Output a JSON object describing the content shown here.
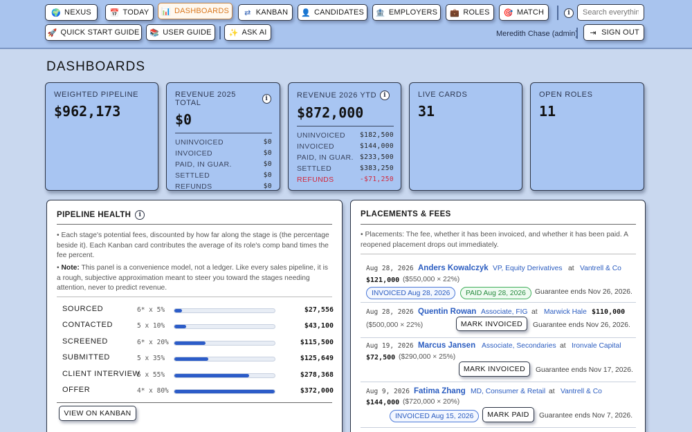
{
  "nav": {
    "row1": [
      {
        "id": "nexus",
        "label": "NEXUS",
        "icon": "globe-icon",
        "glyph": "🌍"
      },
      {
        "id": "today",
        "label": "TODAY",
        "icon": "calendar-icon",
        "glyph": "📅"
      },
      {
        "id": "dashboards",
        "label": "DASHBOARDS",
        "icon": "bar-chart-icon",
        "glyph": "📊",
        "active": true
      },
      {
        "id": "kanban",
        "label": "KANBAN",
        "icon": "arrows-icon",
        "glyph": "⇄"
      },
      {
        "id": "candidates",
        "label": "CANDIDATES",
        "icon": "person-icon",
        "glyph": "👤"
      },
      {
        "id": "employers",
        "label": "EMPLOYERS",
        "icon": "bank-icon",
        "glyph": "🏦"
      },
      {
        "id": "roles",
        "label": "ROLES",
        "icon": "briefcase-icon",
        "glyph": "💼"
      },
      {
        "id": "match",
        "label": "MATCH",
        "icon": "target-icon",
        "glyph": "🎯"
      }
    ],
    "row2": [
      {
        "id": "quick-start",
        "label": "QUICK START GUIDE",
        "icon": "rocket-icon",
        "glyph": "🚀"
      },
      {
        "id": "user-guide",
        "label": "USER GUIDE",
        "icon": "books-icon",
        "glyph": "📚"
      },
      {
        "id": "ask-ai",
        "label": "ASK AI",
        "icon": "sparkle-icon",
        "glyph": "✨"
      }
    ],
    "search_placeholder": "Search everything",
    "user": "Meredith Chase (admin)",
    "sign_out": "SIGN OUT"
  },
  "page_title": "DASHBOARDS",
  "cards": {
    "weighted": {
      "label": "WEIGHTED PIPELINE",
      "value": "$962,173"
    },
    "rev2025": {
      "label": "REVENUE 2025 TOTAL",
      "value": "$0",
      "rows": [
        {
          "label": "UNINVOICED",
          "amount": "$0"
        },
        {
          "label": "INVOICED",
          "amount": "$0"
        },
        {
          "label": "PAID, IN GUAR.",
          "amount": "$0"
        },
        {
          "label": "SETTLED",
          "amount": "$0"
        },
        {
          "label": "REFUNDS",
          "amount": "$0"
        }
      ]
    },
    "rev2026": {
      "label": "REVENUE 2026 YTD",
      "value": "$872,000",
      "rows": [
        {
          "label": "UNINVOICED",
          "amount": "$182,500"
        },
        {
          "label": "INVOICED",
          "amount": "$144,000"
        },
        {
          "label": "PAID, IN GUAR.",
          "amount": "$233,500"
        },
        {
          "label": "SETTLED",
          "amount": "$383,250"
        },
        {
          "label": "REFUNDS",
          "amount": "-$71,250"
        }
      ]
    },
    "live": {
      "label": "LIVE CARDS",
      "value": "31"
    },
    "open": {
      "label": "OPEN ROLES",
      "value": "11"
    }
  },
  "pipeline": {
    "title": "PIPELINE HEALTH",
    "para1": "• Each stage's potential fees, discounted by how far along the stage is (the percentage beside it). Each Kanban card contributes the average of its role's comp band times the fee percent.",
    "note_label": "Note:",
    "note_text": "This panel is a convenience model, not a ledger. Like every sales pipeline, it is a rough, subjective approximation meant to steer you toward the stages needing attention, never to predict revenue.",
    "note_bullet": "• ",
    "stages": [
      {
        "name": "SOURCED",
        "formula": "6* x 5%",
        "fraction": 0.074,
        "amount": "$27,556"
      },
      {
        "name": "CONTACTED",
        "formula": "5 x 10%",
        "fraction": 0.116,
        "amount": "$43,100"
      },
      {
        "name": "SCREENED",
        "formula": "6* x 20%",
        "fraction": 0.31,
        "amount": "$115,500"
      },
      {
        "name": "SUBMITTED",
        "formula": "5 x 35%",
        "fraction": 0.337,
        "amount": "$125,649"
      },
      {
        "name": "CLIENT INTERVIEW",
        "formula": "5 x 55%",
        "fraction": 0.748,
        "amount": "$278,368"
      },
      {
        "name": "OFFER",
        "formula": "4* x 80%",
        "fraction": 1.0,
        "amount": "$372,000"
      }
    ],
    "view_kanban": "VIEW ON KANBAN"
  },
  "placements": {
    "title": "PLACEMENTS & FEES",
    "intro": "• Placements: The fee, whether it has been invoiced, and whether it has been paid. A reopened placement drops out immediately.",
    "at": "at",
    "items": [
      {
        "date": "Aug 28, 2026",
        "name": "Anders Kowalczyk",
        "role": "VP, Equity Derivatives",
        "employer": "Vantrell & Co",
        "fee": "$121,000",
        "calc": "($550,000 × 22%)",
        "invoiced": "INVOICED Aug 28, 2026",
        "paid": "PAID Aug 28, 2026",
        "guarantee": "Guarantee ends Nov 26, 2026."
      },
      {
        "date": "Aug 28, 2026",
        "name": "Quentin Rowan",
        "role": "Associate, FIG",
        "employer": "Marwick Hale",
        "fee": "$110,000",
        "calc": "($500,000 × 22%)",
        "action": "MARK INVOICED",
        "guarantee": "Guarantee ends Nov 26, 2026."
      },
      {
        "date": "Aug 19, 2026",
        "name": "Marcus Jansen",
        "role": "Associate, Secondaries",
        "employer": "Ironvale Capital",
        "fee": "$72,500",
        "calc": "($290,000 × 25%)",
        "action": "MARK INVOICED",
        "guarantee": "Guarantee ends Nov 17, 2026."
      },
      {
        "date": "Aug 9, 2026",
        "name": "Fatima Zhang",
        "role": "MD, Consumer & Retail",
        "employer": "Vantrell & Co",
        "fee": "$144,000",
        "calc": "($720,000 × 20%)",
        "invoiced": "INVOICED Aug 15, 2026",
        "action": "MARK PAID",
        "guarantee": "Guarantee ends Nov 7, 2026."
      }
    ]
  }
}
